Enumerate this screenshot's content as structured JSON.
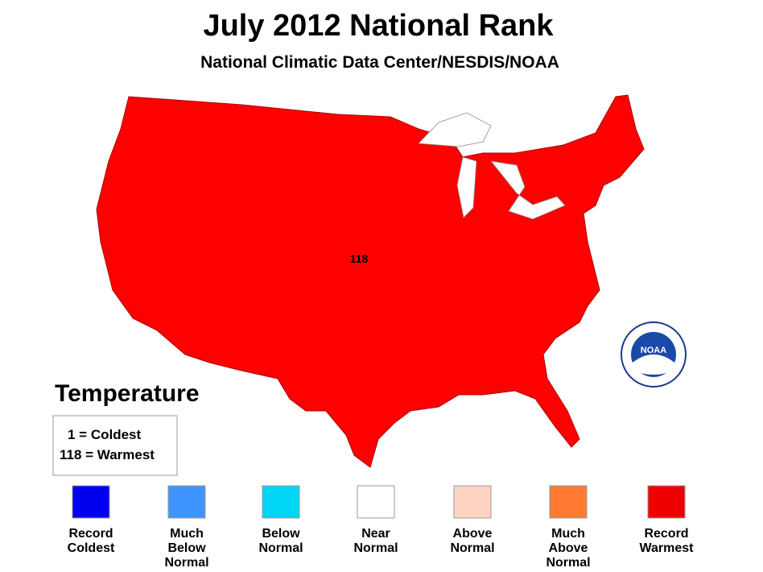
{
  "header": {
    "title": "July 2012 National Rank",
    "subtitle": "National Climatic Data Center/NESDIS/NOAA"
  },
  "map": {
    "fill": "#ff0000",
    "rank_label": "118"
  },
  "key": {
    "title": "Temperature",
    "lines": [
      "1 = Coldest",
      "118 = Warmest"
    ]
  },
  "legend": {
    "items": [
      {
        "color": "#0000ee",
        "label": [
          "Record",
          "Coldest"
        ]
      },
      {
        "color": "#3f95ff",
        "label": [
          "Much",
          "Below",
          "Normal"
        ]
      },
      {
        "color": "#00d5f5",
        "label": [
          "Below",
          "Normal"
        ]
      },
      {
        "color": "#ffffff",
        "label": [
          "Near",
          "Normal"
        ]
      },
      {
        "color": "#ffd3c4",
        "label": [
          "Above",
          "Normal"
        ]
      },
      {
        "color": "#ff7a30",
        "label": [
          "Much",
          "Above",
          "Normal"
        ]
      },
      {
        "color": "#ee0000",
        "label": [
          "Record",
          "Warmest"
        ]
      }
    ]
  },
  "logo": {
    "text": "NOAA"
  }
}
